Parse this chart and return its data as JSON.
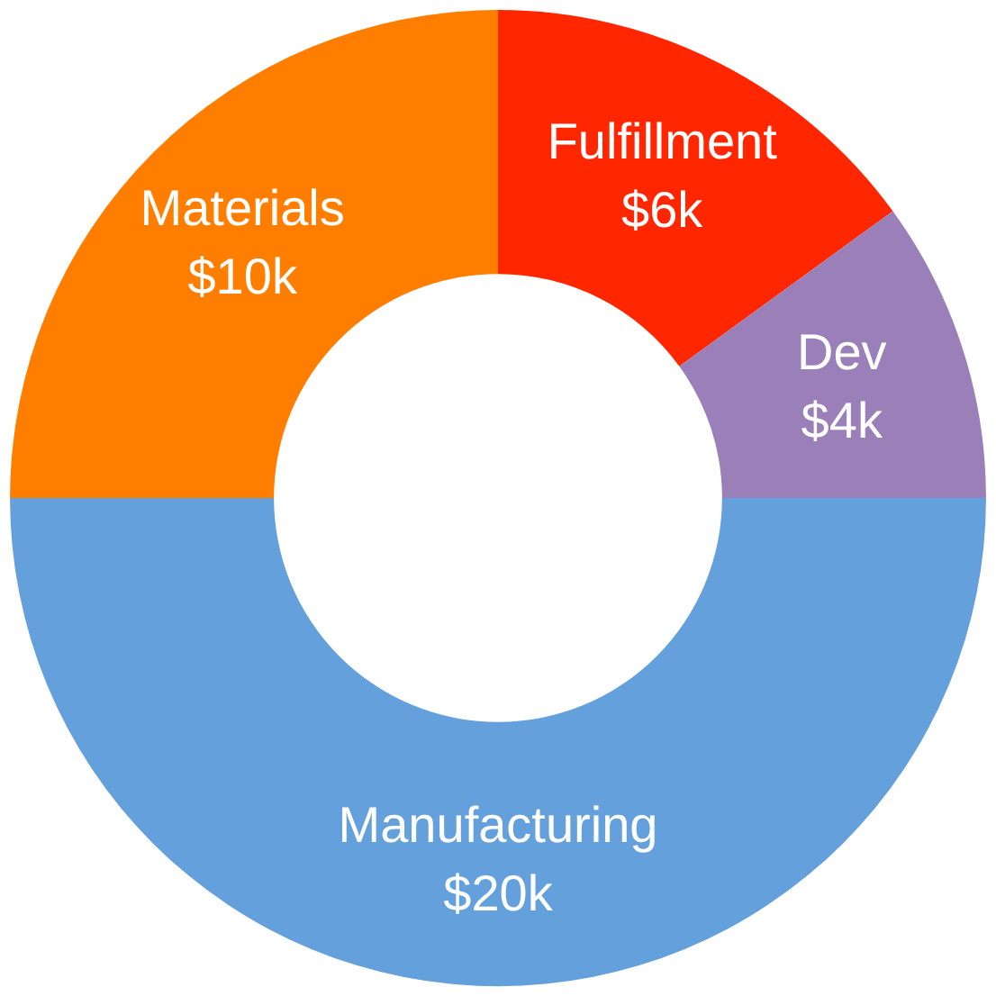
{
  "chart_data": {
    "type": "donut",
    "categories": [
      "Fulfillment",
      "Dev",
      "Manufacturing",
      "Materials"
    ],
    "values": [
      6,
      4,
      20,
      10
    ],
    "value_labels": [
      "$6k",
      "$4k",
      "$20k",
      "$10k"
    ],
    "colors": [
      "#ff2600",
      "#9a7fb8",
      "#64a0dc",
      "#ff7e00"
    ],
    "legend": false
  }
}
